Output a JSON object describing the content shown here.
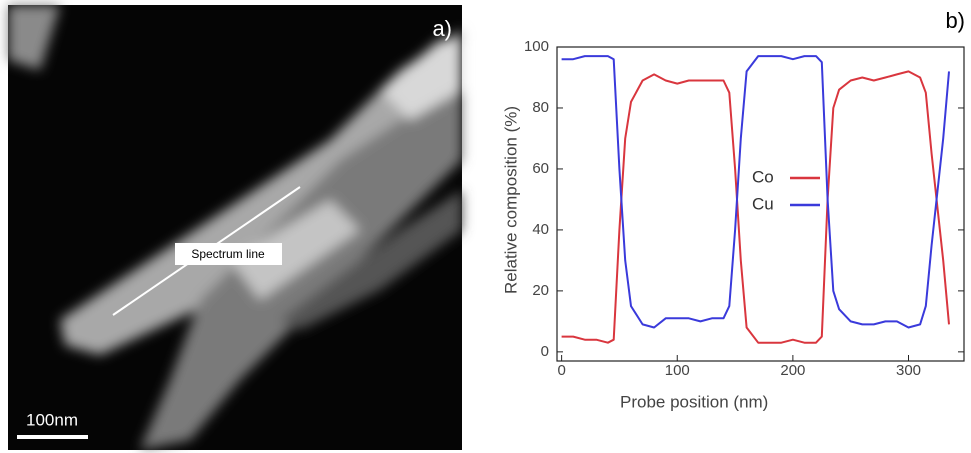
{
  "panel_a": {
    "label": "a)",
    "annotation": "Spectrum line",
    "scale_bar": "100nm"
  },
  "chart_data": {
    "type": "line",
    "panel_label": "b)",
    "x_label": "Probe position (nm)",
    "y_label": "Relative composition (%)",
    "x": [
      0,
      10,
      20,
      30,
      40,
      45,
      50,
      55,
      60,
      70,
      80,
      90,
      100,
      110,
      120,
      130,
      140,
      145,
      150,
      155,
      160,
      170,
      180,
      190,
      200,
      210,
      220,
      225,
      230,
      235,
      240,
      250,
      260,
      270,
      280,
      290,
      300,
      310,
      315,
      320,
      330,
      335
    ],
    "series": [
      {
        "name": "Co",
        "color": "#d9363e",
        "values": [
          5,
          5,
          4,
          4,
          3,
          4,
          40,
          70,
          82,
          89,
          91,
          89,
          88,
          89,
          89,
          89,
          89,
          85,
          60,
          30,
          8,
          3,
          3,
          3,
          4,
          3,
          3,
          5,
          50,
          80,
          86,
          89,
          90,
          89,
          90,
          91,
          92,
          90,
          85,
          65,
          30,
          9
        ]
      },
      {
        "name": "Cu",
        "color": "#3a3adb",
        "values": [
          96,
          96,
          97,
          97,
          97,
          96,
          60,
          30,
          15,
          9,
          8,
          11,
          11,
          11,
          10,
          11,
          11,
          15,
          40,
          70,
          92,
          97,
          97,
          97,
          96,
          97,
          97,
          95,
          50,
          20,
          14,
          10,
          9,
          9,
          10,
          10,
          8,
          9,
          15,
          35,
          70,
          92
        ]
      }
    ],
    "xlim": [
      -4,
      348
    ],
    "ylim": [
      -3,
      100
    ],
    "xticks": [
      0,
      100,
      200,
      300
    ],
    "yticks": [
      0,
      20,
      40,
      60,
      80,
      100
    ]
  }
}
